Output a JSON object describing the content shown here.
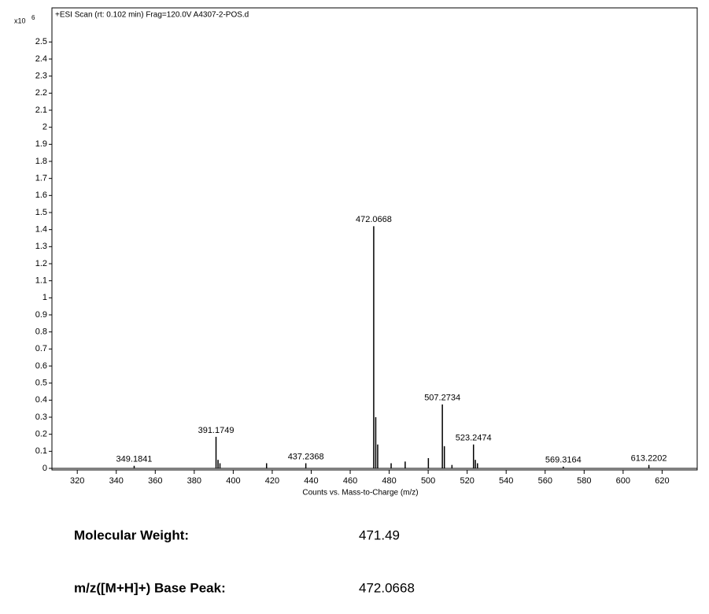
{
  "chart_data": {
    "type": "spectrum",
    "title": "+ESI Scan (rt: 0.102 min) Frag=120.0V A4307-2-POS.d",
    "x_label": "Counts vs. Mass-to-Charge (m/z)",
    "y_multiplier": "x10",
    "y_exponent": "6",
    "color": "#000000",
    "xlim": [
      307,
      638
    ],
    "xticks": [
      320,
      340,
      360,
      380,
      400,
      420,
      440,
      460,
      480,
      500,
      520,
      540,
      560,
      580,
      600,
      620
    ],
    "ylim": [
      0,
      2.7
    ],
    "yticks": [
      0,
      0.1,
      0.2,
      0.3,
      0.4,
      0.5,
      0.6,
      0.7,
      0.8,
      0.9,
      1,
      1.1,
      1.2,
      1.3,
      1.4,
      1.5,
      1.6,
      1.7,
      1.8,
      1.9,
      2,
      2.1,
      2.2,
      2.3,
      2.4,
      2.5
    ],
    "labeled_peaks": {
      "x": [
        349.1841,
        391.1749,
        437.2368,
        472.0668,
        507.2734,
        523.2474,
        569.3164,
        613.2202
      ],
      "values": [
        0.015,
        0.185,
        0.03,
        1.42,
        0.375,
        0.14,
        0.01,
        0.02
      ]
    },
    "peaks": {
      "x": [
        392.2,
        393.2,
        417.1,
        473.1,
        474.1,
        481.0,
        488.2,
        500.1,
        508.3,
        512.2,
        524.2,
        525.3
      ],
      "values": [
        0.05,
        0.03,
        0.03,
        0.3,
        0.14,
        0.03,
        0.04,
        0.06,
        0.13,
        0.02,
        0.05,
        0.03
      ]
    }
  },
  "info": [
    {
      "label": "Molecular Weight:",
      "value": "471.49"
    },
    {
      "label": "m/z([M+H]+) Base Peak:",
      "value": "472.0668"
    }
  ]
}
